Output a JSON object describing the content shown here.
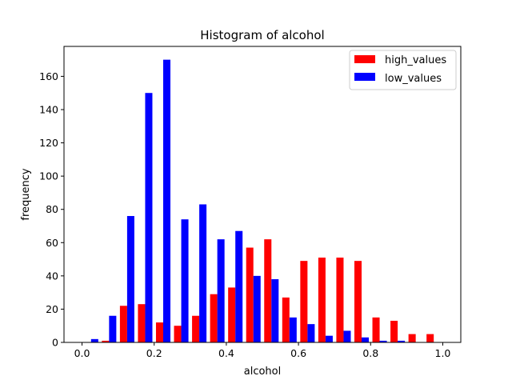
{
  "chart_data": {
    "type": "bar",
    "title": "Histogram of alcohol",
    "xlabel": "alcohol",
    "ylabel": "frequency",
    "xlim": [
      -0.05,
      1.05
    ],
    "ylim": [
      0,
      178
    ],
    "xticks": [
      0.0,
      0.2,
      0.4,
      0.6,
      0.8,
      1.0
    ],
    "xtick_labels": [
      "0.0",
      "0.2",
      "0.4",
      "0.6",
      "0.8",
      "1.0"
    ],
    "yticks": [
      0,
      20,
      40,
      60,
      80,
      100,
      120,
      140,
      160
    ],
    "ytick_labels": [
      "0",
      "20",
      "40",
      "60",
      "80",
      "100",
      "120",
      "140",
      "160"
    ],
    "bin_edges": [
      0.0,
      0.05,
      0.1,
      0.15,
      0.2,
      0.25,
      0.3,
      0.35,
      0.4,
      0.45,
      0.5,
      0.55,
      0.6,
      0.65,
      0.7,
      0.75,
      0.8,
      0.85,
      0.9,
      0.95,
      1.0
    ],
    "legend_position": "top-right",
    "series": [
      {
        "name": "high_values",
        "color": "#ff0000",
        "values": [
          0,
          1,
          22,
          23,
          12,
          10,
          16,
          29,
          33,
          57,
          62,
          27,
          49,
          51,
          51,
          49,
          15,
          13,
          5,
          5
        ]
      },
      {
        "name": "low_values",
        "color": "#0000ff",
        "values": [
          2,
          16,
          76,
          150,
          170,
          74,
          83,
          62,
          67,
          40,
          38,
          15,
          11,
          4,
          7,
          3,
          1,
          1,
          0,
          0
        ]
      }
    ]
  }
}
